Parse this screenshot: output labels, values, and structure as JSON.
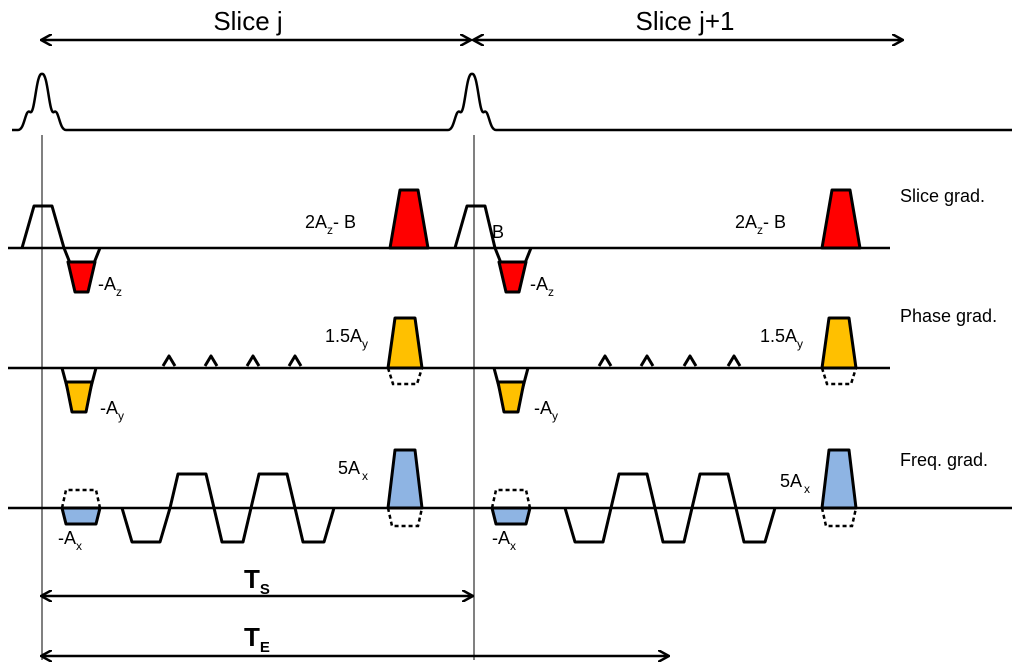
{
  "slices": {
    "j": "Slice j",
    "j1": "Slice j+1"
  },
  "rows": {
    "slice": "Slice grad.",
    "phase": "Phase grad.",
    "freq": "Freq. grad."
  },
  "labels": {
    "s_pos_pre": "2A",
    "s_pos_sub": "z",
    "s_pos_post": "- B",
    "s_neg_pre": "-A",
    "s_neg_sub": "z",
    "b": "B",
    "p_pos_pre": "1.5A",
    "p_pos_sub": "y",
    "p_neg_pre": "-A",
    "p_neg_sub": "y",
    "f_pos_pre": "5A",
    "f_pos_sub": "x",
    "f_neg_pre": "-A",
    "f_neg_sub": "x"
  },
  "timing": {
    "ts_main": "T",
    "ts_sub": "S",
    "te_main": "T",
    "te_sub": "E"
  },
  "colors": {
    "slice_fill": "#ff0000",
    "phase_fill": "#ffc000",
    "freq_fill": "#8eb4e3"
  }
}
